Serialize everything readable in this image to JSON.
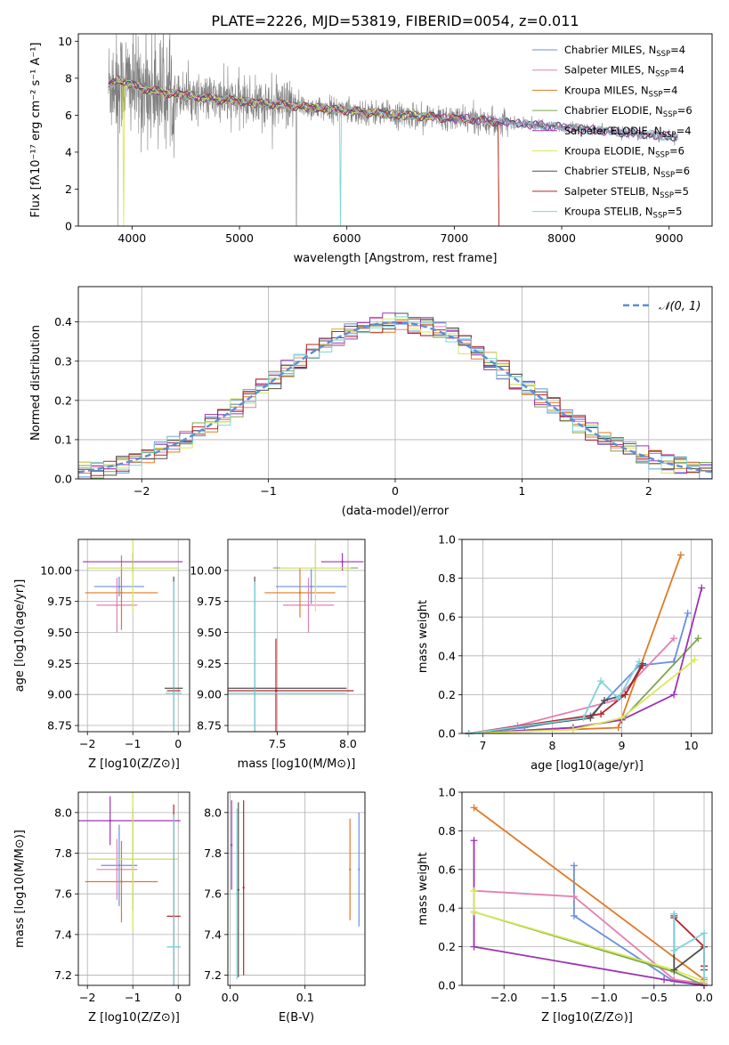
{
  "figure_title": "PLATE=2226, MJD=53819, FIBERID=0054, z=0.011",
  "series_colors": [
    "#6a8fdf",
    "#e57fb0",
    "#e07a26",
    "#7aa84c",
    "#9c34b3",
    "#d9e85a",
    "#4f4f4f",
    "#b3252a",
    "#7fd3dc"
  ],
  "chart_data": [
    {
      "id": "spectrum",
      "type": "line",
      "title": "PLATE=2226, MJD=53819, FIBERID=0054, z=0.011",
      "xlabel": "wavelength [Angstrom, rest frame]",
      "ylabel": "Flux [fλ10⁻¹⁷ erg cm⁻² s⁻¹ A⁻¹]",
      "xlim": [
        3500,
        9400
      ],
      "ylim": [
        0,
        10.4
      ],
      "xticks": [
        4000,
        5000,
        6000,
        7000,
        8000,
        9000
      ],
      "yticks": [
        0,
        2,
        4,
        6,
        8,
        10
      ],
      "grid": false,
      "legend_position": "top-right",
      "data_color": "#808080",
      "data": {
        "x": [
          3780,
          3850,
          3950,
          4050,
          4150,
          4300,
          4500,
          4700,
          4900,
          5100,
          5300,
          5500,
          5700,
          5900,
          6100,
          6300,
          6500,
          6700,
          6900,
          7100,
          7300,
          7500,
          7700,
          7900,
          8100,
          8300,
          8500,
          8700,
          8900,
          9080
        ],
        "y": [
          7.6,
          7.9,
          7.8,
          7.5,
          7.4,
          7.2,
          7.1,
          6.9,
          6.8,
          6.7,
          6.6,
          6.5,
          6.4,
          6.3,
          6.2,
          6.1,
          6.0,
          5.95,
          5.85,
          5.8,
          5.7,
          5.6,
          5.5,
          5.4,
          5.3,
          5.2,
          5.1,
          5.0,
          4.9,
          4.8
        ]
      },
      "series": [
        {
          "name": "Chabrier MILES, N_SSP=4",
          "color": "#6a8fdf"
        },
        {
          "name": "Salpeter MILES, N_SSP=4",
          "color": "#e57fb0"
        },
        {
          "name": "Kroupa MILES, N_SSP=4",
          "color": "#e07a26"
        },
        {
          "name": "Chabrier ELODIE, N_SSP=6",
          "color": "#7aa84c"
        },
        {
          "name": "Salpeter ELODIE, N_SSP=4",
          "color": "#9c34b3"
        },
        {
          "name": "Kroupa ELODIE, N_SSP=6",
          "color": "#d9e85a"
        },
        {
          "name": "Chabrier STELIB, N_SSP=6",
          "color": "#4f4f4f"
        },
        {
          "name": "Salpeter STELIB, N_SSP=5",
          "color": "#b3252a"
        },
        {
          "name": "Kroupa STELIB, N_SSP=5",
          "color": "#7fd3dc"
        }
      ],
      "model_ranges": [
        [
          3780,
          9080
        ],
        [
          3780,
          9080
        ],
        [
          3780,
          7420
        ],
        [
          3780,
          6800
        ],
        [
          3780,
          9080
        ],
        [
          3850,
          6800
        ],
        [
          3780,
          9080
        ],
        [
          3780,
          7420
        ],
        [
          3780,
          9080
        ]
      ],
      "model_drops": [
        [],
        [],
        [
          7420
        ],
        [
          6800
        ],
        [],
        [
          3920,
          6800
        ],
        [],
        [
          7420
        ],
        [
          5940
        ]
      ]
    },
    {
      "id": "residuals",
      "type": "bar",
      "xlabel": "(data-model)/error",
      "ylabel": "Normed distribution",
      "xlim": [
        -2.5,
        2.5
      ],
      "ylim": [
        0,
        0.49
      ],
      "xticks": [
        -2,
        -1,
        0,
        1,
        2
      ],
      "yticks": [
        0.0,
        0.1,
        0.2,
        0.3,
        0.4
      ],
      "grid": true,
      "legend_position": "top-right",
      "reference": {
        "name": "𝒩(0, 1)",
        "color": "#5b8ed8",
        "style": "dashed"
      },
      "bin_width": 0.1,
      "bin_start": -2.5
    },
    {
      "id": "age-vs-Z",
      "type": "scatter",
      "xlabel": "Z [log10(Z/Z⊙)]",
      "ylabel": "age  [log10(age/yr)]",
      "xlim": [
        -2.2,
        0.25
      ],
      "ylim": [
        8.7,
        10.25
      ],
      "xticks": [
        -2,
        -1,
        0
      ],
      "yticks": [
        8.75,
        9.0,
        9.25,
        9.5,
        9.75,
        10.0
      ],
      "grid": true,
      "points": [
        {
          "x": -1.3,
          "xerr": 0.55,
          "y": 9.87,
          "yerr": 0.08,
          "color": "#6a8fdf"
        },
        {
          "x": -1.35,
          "xerr": 0.45,
          "y": 9.72,
          "yerr": 0.22,
          "color": "#e57fb0"
        },
        {
          "x": -1.25,
          "xerr": 0.8,
          "y": 9.82,
          "yerr": 0.3,
          "color": "#e07a26"
        },
        {
          "x": -1.0,
          "xerr": 1.0,
          "y": 10.02,
          "yerr": 0.04,
          "color": "#7aa84c"
        },
        {
          "x": -1.0,
          "xerr": 1.1,
          "y": 10.07,
          "yerr": 0.07,
          "color": "#9c34b3"
        },
        {
          "x": -1.0,
          "xerr": 1.0,
          "y": 10.02,
          "yerr": 0.35,
          "color": "#d9e85a"
        },
        {
          "x": -0.1,
          "xerr": 0.2,
          "y": 9.05,
          "yerr": 0.9,
          "color": "#4f4f4f"
        },
        {
          "x": -0.1,
          "xerr": 0.15,
          "y": 9.03,
          "yerr": 0.02,
          "color": "#b3252a"
        },
        {
          "x": -0.1,
          "xerr": 0.18,
          "y": 9.01,
          "yerr": 0.9,
          "color": "#7fd3dc"
        }
      ]
    },
    {
      "id": "age-vs-mass",
      "type": "scatter",
      "xlabel": "mass [log10(M/M⊙)]",
      "ylabel": "",
      "xlim": [
        7.15,
        8.12
      ],
      "ylim": [
        8.7,
        10.25
      ],
      "xticks": [
        7.5,
        8.0
      ],
      "yticks": [
        8.75,
        9.0,
        9.25,
        9.5,
        9.75,
        10.0
      ],
      "grid": true,
      "points": [
        {
          "x": 7.74,
          "xerr": 0.25,
          "y": 9.87,
          "yerr": 0.14,
          "color": "#6a8fdf"
        },
        {
          "x": 7.72,
          "xerr": 0.18,
          "y": 9.72,
          "yerr": 0.22,
          "color": "#e57fb0"
        },
        {
          "x": 7.66,
          "xerr": 0.25,
          "y": 9.82,
          "yerr": 0.2,
          "color": "#e07a26"
        },
        {
          "x": 7.77,
          "xerr": 0.3,
          "y": 10.02,
          "yerr": 0.2,
          "color": "#7aa84c"
        },
        {
          "x": 7.96,
          "xerr": 0.15,
          "y": 10.07,
          "yerr": 0.07,
          "color": "#9c34b3"
        },
        {
          "x": 7.77,
          "xerr": 0.25,
          "y": 10.02,
          "yerr": 0.35,
          "color": "#d9e85a"
        },
        {
          "x": 7.34,
          "xerr": 0.65,
          "y": 9.05,
          "yerr": 0.9,
          "color": "#4f4f4f"
        },
        {
          "x": 7.49,
          "xerr": 0.55,
          "y": 9.03,
          "yerr": 0.42,
          "color": "#b3252a"
        },
        {
          "x": 7.34,
          "xerr": 0.65,
          "y": 9.01,
          "yerr": 0.9,
          "color": "#7fd3dc"
        }
      ]
    },
    {
      "id": "massweight-vs-age",
      "type": "line",
      "xlabel": "age  [log10(age/yr)]",
      "ylabel": "mass weight",
      "xlim": [
        6.7,
        10.3
      ],
      "ylim": [
        0,
        1.0
      ],
      "xticks": [
        7,
        8,
        9,
        10
      ],
      "yticks": [
        0.0,
        0.2,
        0.4,
        0.6,
        0.8,
        1.0
      ],
      "grid": true,
      "series": [
        {
          "color": "#6a8fdf",
          "x": [
            6.8,
            7.6,
            8.55,
            9.25,
            9.75,
            9.95
          ],
          "y": [
            0.0,
            0.03,
            0.09,
            0.35,
            0.37,
            0.62
          ]
        },
        {
          "color": "#e57fb0",
          "x": [
            6.8,
            7.5,
            8.9,
            9.75
          ],
          "y": [
            0.0,
            0.04,
            0.17,
            0.49
          ]
        },
        {
          "color": "#e07a26",
          "x": [
            6.8,
            8.95,
            9.85
          ],
          "y": [
            0.0,
            0.03,
            0.92
          ]
        },
        {
          "color": "#7aa84c",
          "x": [
            6.8,
            8.3,
            9.0,
            10.1
          ],
          "y": [
            0.0,
            0.03,
            0.07,
            0.49
          ]
        },
        {
          "color": "#9c34b3",
          "x": [
            6.8,
            8.3,
            9.0,
            9.75,
            10.15
          ],
          "y": [
            0.0,
            0.03,
            0.07,
            0.2,
            0.75
          ]
        },
        {
          "color": "#d9e85a",
          "x": [
            6.8,
            8.3,
            9.0,
            10.05
          ],
          "y": [
            0.0,
            0.02,
            0.08,
            0.38
          ]
        },
        {
          "color": "#4f4f4f",
          "x": [
            6.8,
            8.55,
            8.75,
            9.05,
            9.3
          ],
          "y": [
            0.0,
            0.08,
            0.17,
            0.2,
            0.36
          ]
        },
        {
          "color": "#b3252a",
          "x": [
            6.8,
            8.7,
            9.05,
            9.3
          ],
          "y": [
            0.0,
            0.1,
            0.2,
            0.35
          ]
        },
        {
          "color": "#7fd3dc",
          "x": [
            6.8,
            8.45,
            8.7,
            8.95,
            9.25
          ],
          "y": [
            0.0,
            0.08,
            0.27,
            0.18,
            0.37
          ]
        }
      ]
    },
    {
      "id": "mass-vs-Z",
      "type": "scatter",
      "xlabel": "Z [log10(Z/Z⊙)]",
      "ylabel": "mass [log10(M/M⊙)]",
      "xlim": [
        -2.2,
        0.25
      ],
      "ylim": [
        7.15,
        8.1
      ],
      "xticks": [
        -2,
        -1,
        0
      ],
      "yticks": [
        7.2,
        7.4,
        7.6,
        7.8,
        8.0
      ],
      "grid": true,
      "points": [
        {
          "x": -1.3,
          "xerr": 0.4,
          "y": 7.74,
          "yerr": 0.2,
          "color": "#6a8fdf"
        },
        {
          "x": -1.35,
          "xerr": 0.45,
          "y": 7.72,
          "yerr": 0.15,
          "color": "#e57fb0"
        },
        {
          "x": -1.25,
          "xerr": 0.8,
          "y": 7.66,
          "yerr": 0.2,
          "color": "#e07a26"
        },
        {
          "x": -1.0,
          "xerr": 1.0,
          "y": 7.77,
          "yerr": 0.25,
          "color": "#7aa84c"
        },
        {
          "x": -1.5,
          "xerr": 1.55,
          "y": 7.96,
          "yerr": 0.12,
          "color": "#9c34b3"
        },
        {
          "x": -1.0,
          "xerr": 1.0,
          "y": 7.77,
          "yerr": 0.35,
          "color": "#d9e85a"
        },
        {
          "x": -0.1,
          "xerr": 0.15,
          "y": 7.34,
          "yerr": 0.65,
          "color": "#4f4f4f"
        },
        {
          "x": -0.1,
          "xerr": 0.15,
          "y": 7.49,
          "yerr": 0.55,
          "color": "#b3252a"
        },
        {
          "x": -0.1,
          "xerr": 0.15,
          "y": 7.34,
          "yerr": 0.65,
          "color": "#7fd3dc"
        }
      ]
    },
    {
      "id": "mass-vs-EBV",
      "type": "scatter",
      "xlabel": "E(B-V)",
      "ylabel": "",
      "xlim": [
        -0.003,
        0.18
      ],
      "ylim": [
        7.15,
        8.1
      ],
      "xticks": [
        0.0,
        0.1
      ],
      "yticks": [
        7.2,
        7.4,
        7.6,
        7.8,
        8.0
      ],
      "grid": true,
      "points": [
        {
          "x": 0.002,
          "y": 7.84,
          "yerr": 0.22,
          "color": "#9c34b3"
        },
        {
          "x": 0.011,
          "y": 7.62,
          "yerr": 0.43,
          "color": "#4f4f4f"
        },
        {
          "x": 0.009,
          "y": 7.6,
          "yerr": 0.42,
          "color": "#7fd3dc"
        },
        {
          "x": 0.018,
          "y": 7.63,
          "yerr": 0.43,
          "color": "#b3252a"
        },
        {
          "x": 0.16,
          "y": 7.72,
          "yerr": 0.25,
          "color": "#e07a26"
        },
        {
          "x": 0.172,
          "y": 7.72,
          "yerr": 0.28,
          "color": "#6a8fdf"
        }
      ]
    },
    {
      "id": "massweight-vs-Z",
      "type": "line",
      "xlabel": "Z [log10(Z/Z⊙)]",
      "ylabel": "mass weight",
      "xlim": [
        -2.42,
        0.08
      ],
      "ylim": [
        0,
        1.0
      ],
      "xticks": [
        -2.0,
        -1.5,
        -1.0,
        -0.5,
        0.0
      ],
      "yticks": [
        0.0,
        0.2,
        0.4,
        0.6,
        0.8,
        1.0
      ],
      "grid": true,
      "series": [
        {
          "color": "#6a8fdf",
          "x": [
            -1.3,
            -1.3,
            -0.3,
            0.0
          ],
          "y": [
            0.62,
            0.36,
            0.02,
            0.0
          ]
        },
        {
          "color": "#e57fb0",
          "x": [
            -2.3,
            -1.3,
            -0.3,
            0.0
          ],
          "y": [
            0.49,
            0.46,
            0.03,
            0.01
          ]
        },
        {
          "color": "#e07a26",
          "x": [
            -2.3,
            0.0,
            0.0
          ],
          "y": [
            0.92,
            0.03,
            0.0
          ]
        },
        {
          "color": "#7aa84c",
          "x": [
            -2.3,
            -2.3,
            -0.3,
            0.0
          ],
          "y": [
            0.49,
            0.38,
            0.07,
            0.0
          ]
        },
        {
          "color": "#9c34b3",
          "x": [
            -2.3,
            -2.3,
            -0.4,
            0.0
          ],
          "y": [
            0.75,
            0.2,
            0.03,
            0.0
          ]
        },
        {
          "color": "#d9e85a",
          "x": [
            -2.3,
            -2.3,
            -0.3,
            0.0
          ],
          "y": [
            0.49,
            0.38,
            0.08,
            0.02
          ]
        },
        {
          "color": "#4f4f4f",
          "x": [
            -0.3,
            -0.3,
            0.0,
            0.0
          ],
          "y": [
            0.36,
            0.08,
            0.2,
            0.08
          ]
        },
        {
          "color": "#b3252a",
          "x": [
            -0.3,
            0.0,
            0.0
          ],
          "y": [
            0.35,
            0.2,
            0.1
          ]
        },
        {
          "color": "#7fd3dc",
          "x": [
            -0.3,
            -0.3,
            0.0,
            0.0
          ],
          "y": [
            0.37,
            0.18,
            0.27,
            0.04
          ]
        }
      ]
    }
  ]
}
